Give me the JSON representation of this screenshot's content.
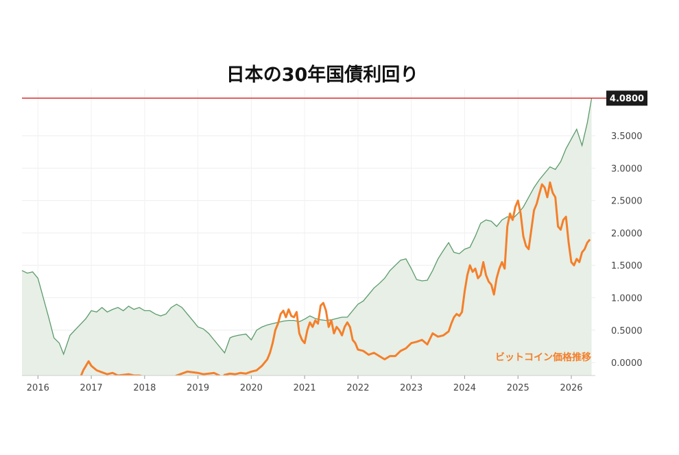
{
  "chart_data": {
    "type": "line",
    "title": "日本の30年国債利回り",
    "ylim": [
      -0.2,
      4.22
    ],
    "x_range": [
      2015.7,
      2026.45
    ],
    "grid": true,
    "x_tick_labels": [
      "2016",
      "2017",
      "2018",
      "2019",
      "2020",
      "2021",
      "2022",
      "2023",
      "2024",
      "2025",
      "2026"
    ],
    "y_tick_labels": [
      "0.0000",
      "0.5000",
      "1.0000",
      "1.5000",
      "2.0000",
      "2.5000",
      "3.0000",
      "3.5000"
    ],
    "y_ticks": [
      0,
      0.5,
      1.0,
      1.5,
      2.0,
      2.5,
      3.0,
      3.5
    ],
    "last_value_label": "4.0800",
    "horizontal_line": 4.08,
    "annotation": "ビットコイン価格推移",
    "colors": {
      "yield_line": "#5a9a6a",
      "yield_fill": "#e7efe6",
      "bitcoin": "#f47f2a",
      "hline": "#d9302c",
      "badge": "#1c1c1c"
    },
    "series": [
      {
        "name": "日本の30年国債利回り",
        "x": [
          2015.7,
          2015.8,
          2015.9,
          2016.0,
          2016.1,
          2016.2,
          2016.3,
          2016.4,
          2016.48,
          2016.6,
          2016.75,
          2016.9,
          2017.0,
          2017.1,
          2017.2,
          2017.3,
          2017.4,
          2017.5,
          2017.6,
          2017.7,
          2017.8,
          2017.9,
          2018.0,
          2018.1,
          2018.2,
          2018.3,
          2018.4,
          2018.5,
          2018.6,
          2018.7,
          2018.8,
          2018.9,
          2019.0,
          2019.1,
          2019.2,
          2019.3,
          2019.4,
          2019.5,
          2019.6,
          2019.65,
          2019.75,
          2019.9,
          2020.0,
          2020.1,
          2020.2,
          2020.3,
          2020.4,
          2020.5,
          2020.6,
          2020.7,
          2020.8,
          2020.9,
          2021.0,
          2021.1,
          2021.2,
          2021.3,
          2021.4,
          2021.5,
          2021.6,
          2021.7,
          2021.8,
          2021.9,
          2022.0,
          2022.1,
          2022.2,
          2022.3,
          2022.4,
          2022.5,
          2022.6,
          2022.7,
          2022.8,
          2022.9,
          2023.0,
          2023.1,
          2023.2,
          2023.3,
          2023.4,
          2023.5,
          2023.6,
          2023.7,
          2023.8,
          2023.9,
          2024.0,
          2024.1,
          2024.2,
          2024.3,
          2024.4,
          2024.5,
          2024.6,
          2024.7,
          2024.8,
          2024.9,
          2025.0,
          2025.1,
          2025.2,
          2025.3,
          2025.4,
          2025.5,
          2025.6,
          2025.7,
          2025.8,
          2025.9,
          2026.0,
          2026.1,
          2026.2,
          2026.3,
          2026.38
        ],
        "y": [
          1.42,
          1.38,
          1.4,
          1.3,
          1.0,
          0.7,
          0.38,
          0.3,
          0.13,
          0.42,
          0.55,
          0.68,
          0.8,
          0.78,
          0.85,
          0.78,
          0.82,
          0.85,
          0.8,
          0.87,
          0.82,
          0.85,
          0.8,
          0.8,
          0.75,
          0.72,
          0.75,
          0.85,
          0.9,
          0.85,
          0.75,
          0.65,
          0.55,
          0.52,
          0.45,
          0.35,
          0.25,
          0.15,
          0.38,
          0.4,
          0.42,
          0.44,
          0.35,
          0.5,
          0.55,
          0.58,
          0.6,
          0.62,
          0.64,
          0.65,
          0.65,
          0.63,
          0.67,
          0.72,
          0.68,
          0.66,
          0.65,
          0.66,
          0.68,
          0.7,
          0.7,
          0.8,
          0.9,
          0.95,
          1.05,
          1.15,
          1.22,
          1.3,
          1.42,
          1.5,
          1.58,
          1.6,
          1.45,
          1.28,
          1.26,
          1.27,
          1.42,
          1.6,
          1.73,
          1.85,
          1.7,
          1.68,
          1.75,
          1.78,
          1.95,
          2.15,
          2.2,
          2.18,
          2.1,
          2.2,
          2.25,
          2.22,
          2.3,
          2.4,
          2.55,
          2.7,
          2.82,
          2.92,
          3.02,
          2.98,
          3.1,
          3.3,
          3.45,
          3.6,
          3.35,
          3.7,
          4.08
        ]
      },
      {
        "name": "ビットコイン価格推移",
        "x": [
          2016.1,
          2016.2,
          2016.3,
          2016.4,
          2016.5,
          2016.6,
          2016.7,
          2016.8,
          2016.85,
          2016.9,
          2016.95,
          2017.0,
          2017.1,
          2017.2,
          2017.3,
          2017.4,
          2017.5,
          2017.6,
          2017.7,
          2017.8,
          2017.9,
          2018.0,
          2018.1,
          2018.2,
          2018.3,
          2018.4,
          2018.5,
          2018.6,
          2018.7,
          2018.8,
          2018.9,
          2019.0,
          2019.1,
          2019.2,
          2019.3,
          2019.4,
          2019.45,
          2019.5,
          2019.6,
          2019.7,
          2019.8,
          2019.9,
          2020.0,
          2020.1,
          2020.2,
          2020.3,
          2020.35,
          2020.4,
          2020.45,
          2020.5,
          2020.55,
          2020.6,
          2020.65,
          2020.7,
          2020.75,
          2020.8,
          2020.85,
          2020.9,
          2020.95,
          2021.0,
          2021.05,
          2021.1,
          2021.15,
          2021.2,
          2021.25,
          2021.3,
          2021.35,
          2021.4,
          2021.45,
          2021.5,
          2021.55,
          2021.6,
          2021.65,
          2021.7,
          2021.75,
          2021.8,
          2021.85,
          2021.9,
          2021.95,
          2022.0,
          2022.1,
          2022.2,
          2022.3,
          2022.4,
          2022.5,
          2022.6,
          2022.7,
          2022.8,
          2022.9,
          2023.0,
          2023.1,
          2023.2,
          2023.3,
          2023.4,
          2023.5,
          2023.6,
          2023.65,
          2023.7,
          2023.75,
          2023.8,
          2023.85,
          2023.9,
          2023.95,
          2024.0,
          2024.05,
          2024.1,
          2024.15,
          2024.2,
          2024.25,
          2024.3,
          2024.35,
          2024.4,
          2024.45,
          2024.5,
          2024.55,
          2024.6,
          2024.65,
          2024.7,
          2024.75,
          2024.8,
          2024.85,
          2024.9,
          2024.95,
          2025.0,
          2025.05,
          2025.1,
          2025.15,
          2025.2,
          2025.25,
          2025.3,
          2025.35,
          2025.4,
          2025.45,
          2025.5,
          2025.55,
          2025.6,
          2025.65,
          2025.7,
          2025.75,
          2025.8,
          2025.85,
          2025.9,
          2025.95,
          2026.0,
          2026.05,
          2026.1,
          2026.15,
          2026.2,
          2026.25,
          2026.3,
          2026.35
        ],
        "y": [
          -0.32,
          -0.3,
          -0.3,
          -0.28,
          -0.27,
          -0.26,
          -0.25,
          -0.22,
          -0.12,
          -0.05,
          0.02,
          -0.05,
          -0.12,
          -0.15,
          -0.18,
          -0.16,
          -0.2,
          -0.19,
          -0.18,
          -0.2,
          -0.2,
          -0.22,
          -0.24,
          -0.26,
          -0.26,
          -0.25,
          -0.24,
          -0.2,
          -0.17,
          -0.14,
          -0.15,
          -0.16,
          -0.18,
          -0.17,
          -0.16,
          -0.2,
          -0.24,
          -0.19,
          -0.17,
          -0.18,
          -0.16,
          -0.17,
          -0.14,
          -0.12,
          -0.05,
          0.05,
          0.15,
          0.3,
          0.5,
          0.6,
          0.75,
          0.8,
          0.7,
          0.82,
          0.72,
          0.7,
          0.78,
          0.45,
          0.35,
          0.3,
          0.5,
          0.62,
          0.55,
          0.65,
          0.6,
          0.88,
          0.92,
          0.8,
          0.55,
          0.65,
          0.45,
          0.55,
          0.5,
          0.42,
          0.55,
          0.62,
          0.55,
          0.35,
          0.3,
          0.2,
          0.18,
          0.12,
          0.15,
          0.1,
          0.05,
          0.1,
          0.1,
          0.18,
          0.22,
          0.3,
          0.32,
          0.35,
          0.28,
          0.45,
          0.4,
          0.42,
          0.45,
          0.48,
          0.6,
          0.7,
          0.75,
          0.72,
          0.78,
          1.1,
          1.35,
          1.5,
          1.4,
          1.45,
          1.3,
          1.35,
          1.55,
          1.35,
          1.25,
          1.2,
          1.05,
          1.3,
          1.45,
          1.55,
          1.45,
          2.1,
          2.3,
          2.2,
          2.4,
          2.5,
          2.3,
          1.95,
          1.8,
          1.75,
          2.05,
          2.35,
          2.45,
          2.6,
          2.75,
          2.7,
          2.55,
          2.78,
          2.62,
          2.55,
          2.1,
          2.05,
          2.2,
          2.25,
          1.85,
          1.55,
          1.5,
          1.6,
          1.55,
          1.7,
          1.75,
          1.85,
          1.9
        ]
      }
    ]
  }
}
